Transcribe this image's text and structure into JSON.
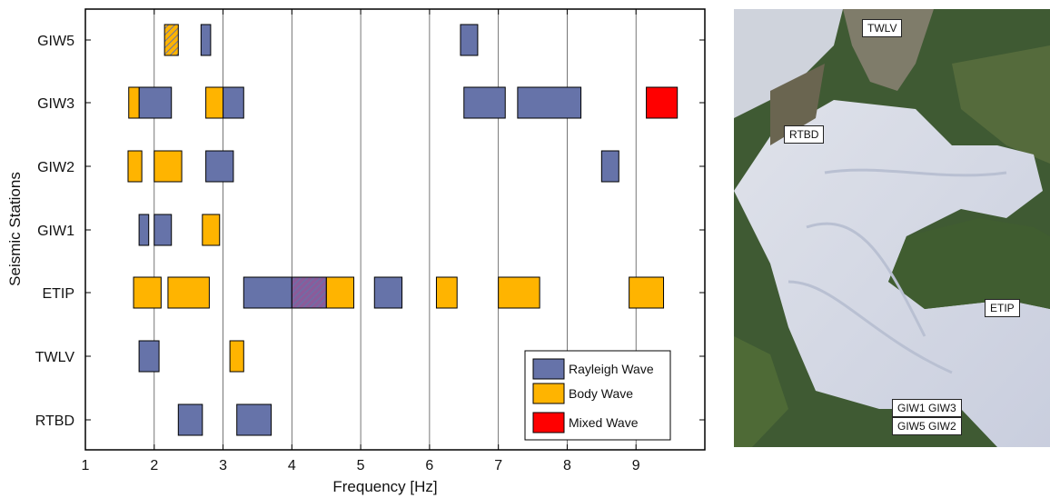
{
  "chart_data": {
    "type": "range-bar",
    "xlabel": "Frequency [Hz]",
    "ylabel": "Seismic Stations",
    "xlim": [
      1,
      10
    ],
    "x_ticks": [
      1,
      2,
      3,
      4,
      5,
      6,
      7,
      8,
      9
    ],
    "x_gridlines": [
      2,
      3,
      4,
      5,
      6,
      7,
      8,
      9
    ],
    "stations": [
      "GIW5",
      "GIW3",
      "GIW2",
      "GIW1",
      "ETIP",
      "TWLV",
      "RTBD"
    ],
    "legend": {
      "position": "bottom-right",
      "entries": [
        {
          "key": "rayleigh",
          "label": "Rayleigh Wave",
          "color": "#6673a9"
        },
        {
          "key": "body",
          "label": "Body Wave",
          "color": "#ffb400"
        },
        {
          "key": "mixed",
          "label": "Mixed Wave",
          "color": "#ff0000"
        }
      ]
    },
    "series": [
      {
        "key": "rayleigh",
        "name": "Rayleigh Wave",
        "color": "#6673a9",
        "intervals": [
          {
            "station": "GIW5",
            "start": 2.68,
            "end": 2.82
          },
          {
            "station": "GIW5",
            "start": 6.45,
            "end": 6.7
          },
          {
            "station": "GIW3",
            "start": 1.78,
            "end": 2.25
          },
          {
            "station": "GIW3",
            "start": 3.0,
            "end": 3.3
          },
          {
            "station": "GIW3",
            "start": 6.5,
            "end": 7.1
          },
          {
            "station": "GIW3",
            "start": 7.28,
            "end": 8.2
          },
          {
            "station": "GIW2",
            "start": 2.75,
            "end": 3.15
          },
          {
            "station": "GIW2",
            "start": 8.5,
            "end": 8.75
          },
          {
            "station": "GIW1",
            "start": 1.78,
            "end": 1.92
          },
          {
            "station": "GIW1",
            "start": 2.0,
            "end": 2.25
          },
          {
            "station": "ETIP",
            "start": 3.3,
            "end": 4.0
          },
          {
            "station": "ETIP",
            "start": 5.2,
            "end": 5.6
          },
          {
            "station": "TWLV",
            "start": 1.78,
            "end": 2.07
          },
          {
            "station": "RTBD",
            "start": 2.35,
            "end": 2.7
          },
          {
            "station": "RTBD",
            "start": 3.2,
            "end": 3.7
          }
        ]
      },
      {
        "key": "body",
        "name": "Body Wave",
        "color": "#ffb400",
        "intervals": [
          {
            "station": "GIW5",
            "start": 2.15,
            "end": 2.35,
            "hatched": true
          },
          {
            "station": "GIW3",
            "start": 1.63,
            "end": 1.78
          },
          {
            "station": "GIW3",
            "start": 2.75,
            "end": 3.0
          },
          {
            "station": "GIW2",
            "start": 1.62,
            "end": 1.82
          },
          {
            "station": "GIW2",
            "start": 2.0,
            "end": 2.4
          },
          {
            "station": "GIW1",
            "start": 2.7,
            "end": 2.95
          },
          {
            "station": "ETIP",
            "start": 1.7,
            "end": 2.1
          },
          {
            "station": "ETIP",
            "start": 2.2,
            "end": 2.8
          },
          {
            "station": "ETIP",
            "start": 4.5,
            "end": 4.9
          },
          {
            "station": "ETIP",
            "start": 6.1,
            "end": 6.4
          },
          {
            "station": "ETIP",
            "start": 7.0,
            "end": 7.6
          },
          {
            "station": "ETIP",
            "start": 8.9,
            "end": 9.4
          },
          {
            "station": "TWLV",
            "start": 3.1,
            "end": 3.3
          }
        ]
      },
      {
        "key": "mixed",
        "name": "Mixed Wave",
        "color": "#ff0000",
        "intervals": [
          {
            "station": "GIW3",
            "start": 9.15,
            "end": 9.6
          },
          {
            "station": "ETIP",
            "start": 4.0,
            "end": 4.5,
            "hatched": true
          }
        ]
      }
    ]
  },
  "map": {
    "labels": [
      {
        "key": "twlv",
        "text": "TWLV"
      },
      {
        "key": "rtbd",
        "text": "RTBD"
      },
      {
        "key": "etip",
        "text": "ETIP"
      },
      {
        "key": "giw13",
        "text": "GIW1  GIW3"
      },
      {
        "key": "giw52",
        "text": "GIW5  GIW2"
      }
    ]
  }
}
